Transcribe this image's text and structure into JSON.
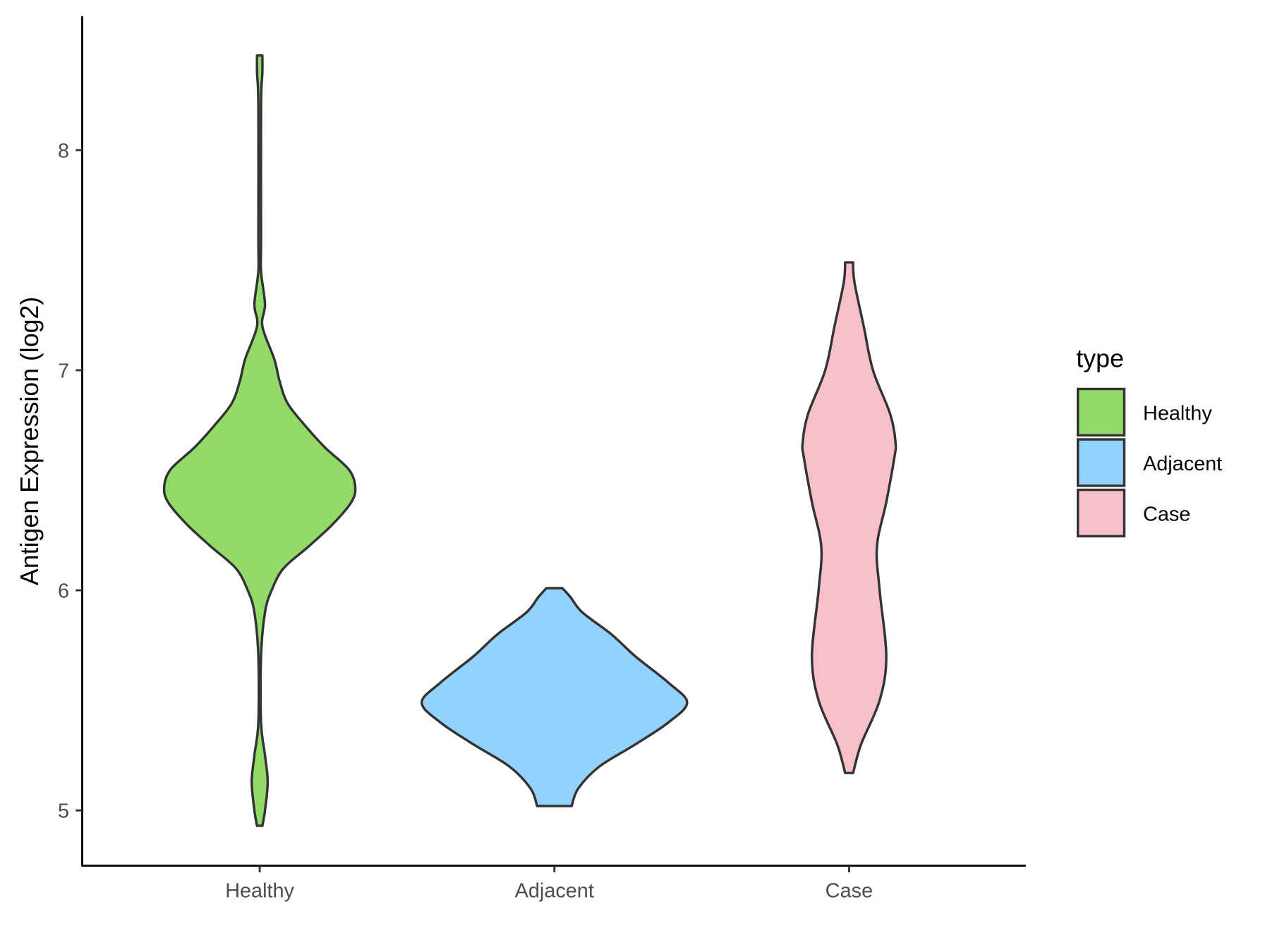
{
  "chart_data": {
    "type": "violin",
    "title": "",
    "xlabel": "",
    "ylabel": "Antigen Expression (log2)",
    "ylim": [
      4.75,
      8.6
    ],
    "yticks": [
      5,
      6,
      7,
      8
    ],
    "ytick_labels": [
      "5",
      "6",
      "7",
      "8"
    ],
    "categories": [
      "Healthy",
      "Adjacent",
      "Case"
    ],
    "grid": false,
    "legend": {
      "title": "type",
      "position": "right",
      "entries": [
        "Healthy",
        "Adjacent",
        "Case"
      ]
    },
    "series": [
      {
        "name": "Healthy",
        "color": "#93DB69",
        "profile_y": [
          4.93,
          5.0,
          5.13,
          5.25,
          5.4,
          5.7,
          5.9,
          6.0,
          6.1,
          6.2,
          6.3,
          6.4,
          6.47,
          6.55,
          6.65,
          6.75,
          6.85,
          6.95,
          7.05,
          7.2,
          7.3,
          7.45,
          7.6,
          8.2,
          8.35,
          8.43
        ],
        "relative_width": [
          0.02,
          0.04,
          0.06,
          0.04,
          0.01,
          0.01,
          0.04,
          0.09,
          0.18,
          0.37,
          0.55,
          0.69,
          0.72,
          0.67,
          0.49,
          0.34,
          0.21,
          0.15,
          0.11,
          0.02,
          0.04,
          0.01,
          0.01,
          0.01,
          0.02,
          0.02
        ]
      },
      {
        "name": "Adjacent",
        "color": "#92D2FD",
        "profile_y": [
          5.02,
          5.1,
          5.2,
          5.3,
          5.4,
          5.49,
          5.58,
          5.7,
          5.8,
          5.9,
          5.97,
          6.01
        ],
        "relative_width": [
          0.13,
          0.18,
          0.34,
          0.61,
          0.86,
          1.0,
          0.86,
          0.61,
          0.43,
          0.21,
          0.12,
          0.06
        ]
      },
      {
        "name": "Case",
        "color": "#F7C0CB",
        "profile_y": [
          5.17,
          5.3,
          5.5,
          5.7,
          6.0,
          6.2,
          6.4,
          6.6,
          6.67,
          6.8,
          7.0,
          7.2,
          7.4,
          7.49
        ],
        "relative_width": [
          0.03,
          0.09,
          0.23,
          0.28,
          0.23,
          0.21,
          0.28,
          0.34,
          0.35,
          0.31,
          0.18,
          0.11,
          0.04,
          0.03
        ]
      }
    ]
  }
}
